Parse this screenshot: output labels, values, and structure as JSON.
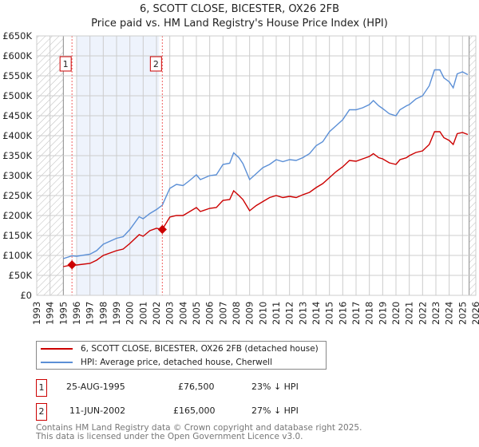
{
  "title": "6, SCOTT CLOSE, BICESTER, OX26 2FB",
  "subtitle": "Price paid vs. HM Land Registry's House Price Index (HPI)",
  "legend": {
    "property": "6, SCOTT CLOSE, BICESTER, OX26 2FB (detached house)",
    "hpi": "HPI: Average price, detached house, Cherwell"
  },
  "colors": {
    "property": "#cc0000",
    "hpi": "#5b8fd6",
    "shade": "#eef3fc"
  },
  "sales": [
    {
      "num": "1",
      "date": "25-AUG-1995",
      "price": "£76,500",
      "delta": "23% ↓ HPI"
    },
    {
      "num": "2",
      "date": "11-JUN-2002",
      "price": "£165,000",
      "delta": "27% ↓ HPI"
    }
  ],
  "footer": {
    "line1": "Contains HM Land Registry data © Crown copyright and database right 2025.",
    "line2": "This data is licensed under the Open Government Licence v3.0."
  },
  "chart_data": {
    "type": "line",
    "xlim": [
      1993,
      2026
    ],
    "ylim": [
      0,
      650000
    ],
    "x_ticks": [
      "1993",
      "1994",
      "1995",
      "1996",
      "1997",
      "1998",
      "1999",
      "2000",
      "2001",
      "2002",
      "2003",
      "2004",
      "2005",
      "2006",
      "2007",
      "2008",
      "2009",
      "2010",
      "2011",
      "2012",
      "2013",
      "2014",
      "2015",
      "2016",
      "2017",
      "2018",
      "2019",
      "2020",
      "2021",
      "2022",
      "2023",
      "2024",
      "2025",
      "2026"
    ],
    "y_ticks": [
      {
        "v": 0,
        "label": "£0"
      },
      {
        "v": 50000,
        "label": "£50K"
      },
      {
        "v": 100000,
        "label": "£100K"
      },
      {
        "v": 150000,
        "label": "£150K"
      },
      {
        "v": 200000,
        "label": "£200K"
      },
      {
        "v": 250000,
        "label": "£250K"
      },
      {
        "v": 300000,
        "label": "£300K"
      },
      {
        "v": 350000,
        "label": "£350K"
      },
      {
        "v": 400000,
        "label": "£400K"
      },
      {
        "v": 450000,
        "label": "£450K"
      },
      {
        "v": 500000,
        "label": "£500K"
      },
      {
        "v": 550000,
        "label": "£550K"
      },
      {
        "v": 600000,
        "label": "£600K"
      },
      {
        "v": 650000,
        "label": "£650K"
      }
    ],
    "x": [
      1995.0,
      1995.65,
      1996,
      1997,
      1997.5,
      1998,
      1999,
      1999.5,
      2000,
      2000.7,
      2001,
      2001.5,
      2002,
      2002.44,
      2003,
      2003.5,
      2004,
      2004.5,
      2005,
      2005.3,
      2006,
      2006.5,
      2007,
      2007.5,
      2007.8,
      2008.2,
      2008.5,
      2009,
      2009.5,
      2010,
      2010.5,
      2011,
      2011.5,
      2012,
      2012.5,
      2013,
      2013.5,
      2014,
      2014.5,
      2015,
      2015.5,
      2016,
      2016.5,
      2017,
      2017.5,
      2018,
      2018.3,
      2018.7,
      2019,
      2019.5,
      2020,
      2020.3,
      2020.8,
      2021,
      2021.5,
      2022,
      2022.5,
      2022.9,
      2023.3,
      2023.6,
      2024,
      2024.3,
      2024.6,
      2025,
      2025.4
    ],
    "series": [
      {
        "name": "6, SCOTT CLOSE, BICESTER, OX26 2FB (detached house)",
        "values": [
          72000,
          76500,
          76000,
          80000,
          88000,
          100000,
          112000,
          116000,
          130000,
          152000,
          148000,
          162000,
          168000,
          165000,
          196000,
          200000,
          200000,
          210000,
          220000,
          210000,
          218000,
          220000,
          238000,
          240000,
          262000,
          250000,
          240000,
          212000,
          225000,
          235000,
          245000,
          250000,
          245000,
          248000,
          245000,
          252000,
          258000,
          270000,
          280000,
          295000,
          310000,
          322000,
          338000,
          336000,
          342000,
          348000,
          355000,
          345000,
          342000,
          332000,
          328000,
          340000,
          345000,
          350000,
          358000,
          362000,
          378000,
          410000,
          410000,
          395000,
          388000,
          378000,
          405000,
          408000,
          403000
        ]
      },
      {
        "name": "HPI: Average price, detached house, Cherwell",
        "values": [
          92000,
          99000,
          98000,
          103000,
          112000,
          128000,
          143000,
          147000,
          165000,
          197000,
          192000,
          205000,
          215000,
          226000,
          268000,
          278000,
          275000,
          288000,
          302000,
          290000,
          300000,
          302000,
          328000,
          331000,
          357000,
          345000,
          330000,
          290000,
          305000,
          320000,
          328000,
          340000,
          335000,
          340000,
          338000,
          345000,
          355000,
          375000,
          385000,
          410000,
          425000,
          440000,
          465000,
          465000,
          470000,
          478000,
          488000,
          475000,
          468000,
          455000,
          450000,
          465000,
          475000,
          478000,
          492000,
          500000,
          525000,
          565000,
          565000,
          545000,
          535000,
          520000,
          555000,
          560000,
          553000
        ]
      }
    ],
    "sale_points": [
      {
        "label": "1",
        "x": 1995.65,
        "y": 76500
      },
      {
        "label": "2",
        "x": 2002.44,
        "y": 165000
      }
    ],
    "shaded_range": [
      1996,
      2002.2
    ],
    "hatched_ranges": [
      [
        1993,
        1995
      ],
      [
        2025.5,
        2026
      ]
    ],
    "grid": true,
    "legend_placement": "bottom"
  }
}
